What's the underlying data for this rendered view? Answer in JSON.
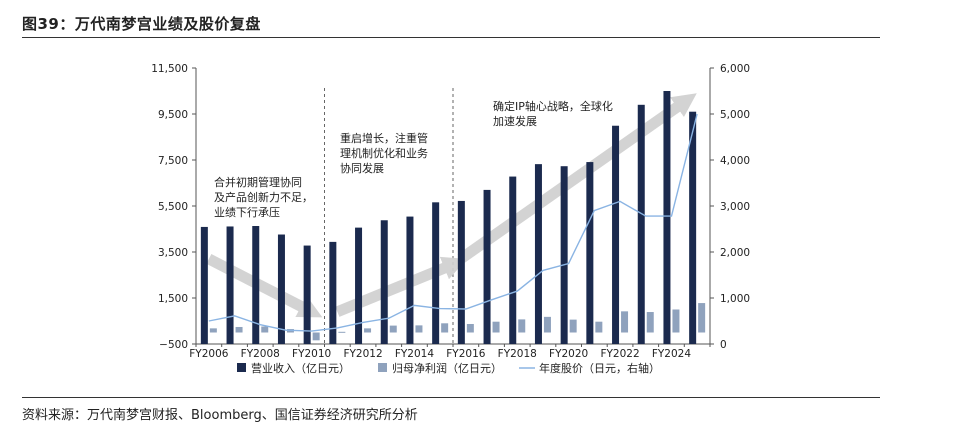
{
  "figure": {
    "title": "图39：万代南梦宫业绩及股价复盘",
    "source": "资料来源：万代南梦宫财报、Bloomberg、国信证券经济研究所分析"
  },
  "chart_data": {
    "type": "bar",
    "years": [
      "FY2006",
      "FY2007",
      "FY2008",
      "FY2009",
      "FY2010",
      "FY2011",
      "FY2012",
      "FY2013",
      "FY2014",
      "FY2015",
      "FY2016",
      "FY2017",
      "FY2018",
      "FY2019",
      "FY2020",
      "FY2021",
      "FY2022",
      "FY2023",
      "FY2024",
      "FY2025"
    ],
    "x_tick_labels": [
      "FY2006",
      "",
      "FY2008",
      "",
      "FY2010",
      "",
      "FY2012",
      "",
      "FY2014",
      "",
      "FY2016",
      "",
      "FY2018",
      "",
      "FY2020",
      "",
      "FY2022",
      "",
      "FY2024",
      ""
    ],
    "series": [
      {
        "name": "营业收入（亿日元）",
        "axis": "left",
        "type": "bar",
        "color": "#1b2a4e",
        "values": [
          4590,
          4610,
          4630,
          4260,
          3780,
          3940,
          4560,
          4880,
          5040,
          5660,
          5720,
          6200,
          6780,
          7320,
          7230,
          7410,
          8990,
          9900,
          10500,
          9600
        ]
      },
      {
        "name": "归母净利润（亿日元）",
        "axis": "left",
        "type": "bar",
        "color": "#8fa2bd",
        "values": [
          180,
          240,
          260,
          150,
          -340,
          30,
          180,
          300,
          310,
          400,
          370,
          470,
          570,
          680,
          560,
          470,
          920,
          890,
          1000,
          1280
        ]
      },
      {
        "name": "年度股价（日元，右轴）",
        "axis": "right",
        "type": "line",
        "color": "#8ab4e3",
        "values": [
          500,
          610,
          420,
          300,
          280,
          350,
          470,
          560,
          840,
          770,
          760,
          960,
          1150,
          1600,
          1750,
          2900,
          3100,
          2780,
          2780,
          5000
        ]
      }
    ],
    "left_axis": {
      "min": -500,
      "max": 11500,
      "ticks": [
        "−500",
        "1,500",
        "3,500",
        "5,500",
        "7,500",
        "9,500",
        "11,500"
      ],
      "tick_values": [
        -500,
        1500,
        3500,
        5500,
        7500,
        9500,
        11500
      ]
    },
    "right_axis": {
      "min": 0,
      "max": 6000,
      "ticks": [
        "0",
        "1,000",
        "2,000",
        "3,000",
        "4,000",
        "5,000",
        "6,000"
      ],
      "tick_values": [
        0,
        1000,
        2000,
        3000,
        4000,
        5000,
        6000
      ]
    },
    "phase_dividers_after_year_index": [
      4.5,
      9.5
    ],
    "annotations": [
      {
        "lines": [
          "合并初期管理协同",
          "及产品创新力不足，",
          "业绩下行承压"
        ]
      },
      {
        "lines": [
          "重启增长，注重管",
          "理机制优化和业务",
          "协同发展"
        ]
      },
      {
        "lines": [
          "确定IP轴心战略，全球化",
          "加速发展"
        ]
      }
    ],
    "trend_arrows": [
      {
        "from": [
          0,
          3200
        ],
        "to": [
          4,
          900
        ]
      },
      {
        "from": [
          5,
          900
        ],
        "to": [
          9.6,
          3000
        ]
      },
      {
        "from": [
          9.8,
          3200
        ],
        "to": [
          18.6,
          10100
        ]
      }
    ],
    "legend": [
      "营业收入（亿日元）",
      "归母净利润（亿日元）",
      "年度股价（日元，右轴）"
    ],
    "legend_position": "bottom"
  }
}
